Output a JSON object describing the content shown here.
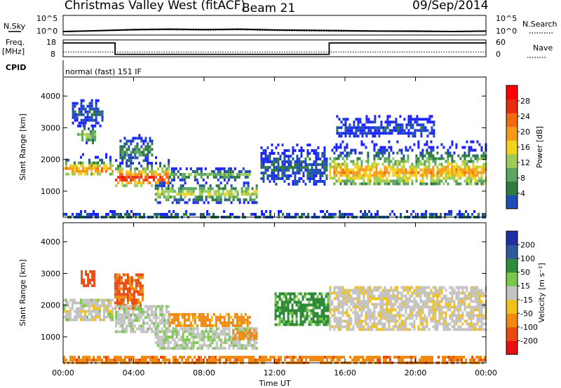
{
  "header": {
    "station": "Christmas Valley West (fitACF)",
    "beam": "Beam 21",
    "date": "09/Sep/2014"
  },
  "noise_panel": {
    "left_label": "N.Sky",
    "right_label": "N.Search",
    "left_ticks": [
      "10^5",
      "10^0"
    ],
    "right_ticks": [
      "10^5",
      "10^0"
    ]
  },
  "freq_panel": {
    "left_label_line1": "Freq.",
    "left_label_line2": "[MHz]",
    "left_ticks": [
      "18",
      "8"
    ],
    "right_label": "Nave",
    "right_ticks": [
      "60",
      "0"
    ]
  },
  "cpid": {
    "label": "CPID",
    "value": "normal (fast) 151 IF"
  },
  "x_axis": {
    "label": "Time UT",
    "ticks": [
      "00:00",
      "04:00",
      "08:00",
      "12:00",
      "16:00",
      "20:00",
      "00:00"
    ]
  },
  "power_panel": {
    "ylabel": "Slant Range [km]",
    "yticks": [
      "4000",
      "3000",
      "2000",
      "1000"
    ],
    "colorbar_label": "Power [dB]",
    "colorbar_ticks": [
      "28",
      "24",
      "20",
      "16",
      "12",
      "8",
      "4"
    ]
  },
  "velocity_panel": {
    "ylabel": "Slant Range [km]",
    "yticks": [
      "4000",
      "3000",
      "2000",
      "1000"
    ],
    "colorbar_label": "Velocity [m s⁻¹]",
    "colorbar_ticks": [
      "200",
      "100",
      "50",
      "15",
      "-15",
      "-50",
      "-100",
      "-200"
    ]
  },
  "colors": {
    "power_scale": [
      "#1a22ff",
      "#1f4fb5",
      "#2f7a40",
      "#5aa660",
      "#9ccd58",
      "#f2d21c",
      "#f59b1c",
      "#f06a12",
      "#e82a10",
      "#ff0000"
    ],
    "velocity_scale": [
      "#2030a0",
      "#2f5a9a",
      "#2f8a3a",
      "#7ac84a",
      "#c3c3c3",
      "#f2c01a",
      "#f08a12",
      "#e84a10",
      "#e81010"
    ]
  },
  "chart_data": [
    {
      "type": "line",
      "name": "noise",
      "x_unit": "hours UT",
      "x": [
        0,
        2,
        4,
        6,
        8,
        10,
        12,
        14,
        16,
        18,
        20,
        22,
        24
      ],
      "series": [
        {
          "name": "N.Sky",
          "values": [
            0.9,
            1.1,
            1.4,
            1.5,
            1.4,
            1.5,
            1.3,
            1.2,
            1.1,
            1.0,
            1.0,
            0.9,
            1.0
          ]
        },
        {
          "name": "N.Search",
          "values": [
            0.8,
            1.0,
            1.2,
            1.3,
            1.2,
            1.3,
            1.1,
            1.0,
            0.9,
            0.9,
            0.8,
            0.8,
            0.9
          ]
        }
      ],
      "ylim_log10": [
        0,
        5
      ]
    },
    {
      "type": "line",
      "name": "frequency_nave",
      "x_unit": "hours UT",
      "series": [
        {
          "name": "Freq.",
          "unit": "MHz",
          "x": [
            0,
            2.95,
            2.95,
            15.1,
            15.1,
            24
          ],
          "values": [
            16.2,
            16.2,
            9.4,
            9.4,
            16.2,
            16.2
          ]
        },
        {
          "name": "Nave",
          "x": [
            0,
            24
          ],
          "values": [
            17,
            17
          ]
        }
      ],
      "ylim_freq": [
        8,
        18
      ],
      "ylim_nave": [
        0,
        60
      ]
    },
    {
      "type": "heatmap",
      "name": "power",
      "x_unit": "hours UT",
      "y_unit": "km",
      "xlim": [
        0,
        24
      ],
      "ylim": [
        180,
        4600
      ],
      "zlim": [
        0,
        30
      ],
      "z_unit": "dB",
      "regions": [
        {
          "x": [
            0.0,
            2.8
          ],
          "y": [
            1500,
            2200
          ],
          "peak": 22,
          "core_y": 1720
        },
        {
          "x": [
            0.8,
            1.8
          ],
          "y": [
            2500,
            3100
          ],
          "peak": 14,
          "core_y": 2800
        },
        {
          "x": [
            0.5,
            2.2
          ],
          "y": [
            3100,
            3900
          ],
          "peak": 5,
          "core_y": 3500
        },
        {
          "x": [
            2.95,
            6.0
          ],
          "y": [
            1150,
            2100
          ],
          "peak": 26,
          "core_y": 1450
        },
        {
          "x": [
            3.2,
            5.0
          ],
          "y": [
            1950,
            2800
          ],
          "peak": 10,
          "core_y": 2300
        },
        {
          "x": [
            6.0,
            10.6
          ],
          "y": [
            1350,
            1750
          ],
          "peak": 12,
          "core_y": 1560
        },
        {
          "x": [
            5.2,
            11.0
          ],
          "y": [
            650,
            1300
          ],
          "peak": 16,
          "core_y": 980
        },
        {
          "x": [
            11.2,
            15.0
          ],
          "y": [
            1200,
            2500
          ],
          "peak": 6,
          "core_y": 1800
        },
        {
          "x": [
            15.1,
            24.0
          ],
          "y": [
            1200,
            2600
          ],
          "peak": 20,
          "core_y": 1650
        },
        {
          "x": [
            15.5,
            21.0
          ],
          "y": [
            2700,
            3400
          ],
          "peak": 4,
          "core_y": 3000
        },
        {
          "x": [
            0.0,
            24.0
          ],
          "y": [
            180,
            400
          ],
          "peak": 8,
          "core_y": 250
        }
      ]
    },
    {
      "type": "heatmap",
      "name": "velocity",
      "x_unit": "hours UT",
      "y_unit": "km",
      "xlim": [
        0,
        24
      ],
      "ylim": [
        180,
        4600
      ],
      "zlim": [
        -250,
        250
      ],
      "z_unit": "m s-1",
      "regions": [
        {
          "x": [
            0.0,
            2.8
          ],
          "y": [
            1500,
            2200
          ],
          "value": 0
        },
        {
          "x": [
            1.0,
            1.8
          ],
          "y": [
            2600,
            3100
          ],
          "value": -120
        },
        {
          "x": [
            2.9,
            4.5
          ],
          "y": [
            1900,
            3000
          ],
          "value": -80
        },
        {
          "x": [
            2.95,
            6.0
          ],
          "y": [
            1150,
            2000
          ],
          "value": 5
        },
        {
          "x": [
            6.0,
            10.6
          ],
          "y": [
            1350,
            1750
          ],
          "value": -45
        },
        {
          "x": [
            5.2,
            11.0
          ],
          "y": [
            650,
            1300
          ],
          "value": 8
        },
        {
          "x": [
            9.6,
            11.0
          ],
          "y": [
            900,
            1250
          ],
          "value": -50
        },
        {
          "x": [
            12.0,
            15.0
          ],
          "y": [
            1400,
            2400
          ],
          "value": 40
        },
        {
          "x": [
            15.1,
            24.0
          ],
          "y": [
            1200,
            2600
          ],
          "value": -5
        },
        {
          "x": [
            0.0,
            24.0
          ],
          "y": [
            180,
            400
          ],
          "value": -60
        }
      ]
    }
  ]
}
